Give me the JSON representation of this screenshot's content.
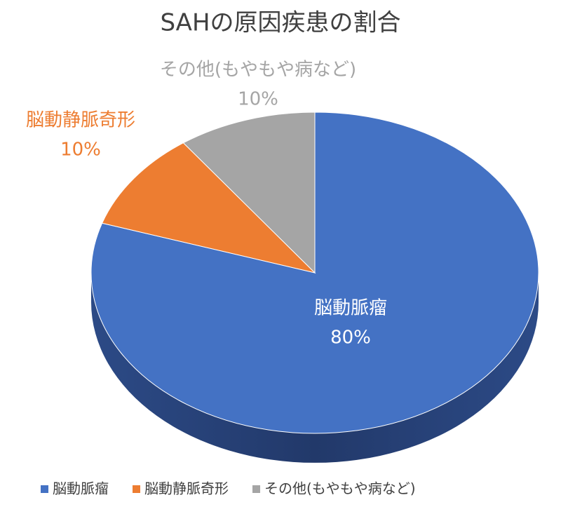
{
  "chart_data": {
    "type": "pie3d",
    "title": "SAHの原因疾患の割合",
    "categories": [
      "脳動脈瘤",
      "脳動静脈奇形",
      "その他(もやもや病など)"
    ],
    "values": [
      80,
      10,
      10
    ],
    "value_labels": [
      "80%",
      "10%",
      "10%"
    ],
    "colors": [
      "#4472c4",
      "#ed7d31",
      "#a5a5a5"
    ],
    "legend": "bottom"
  }
}
